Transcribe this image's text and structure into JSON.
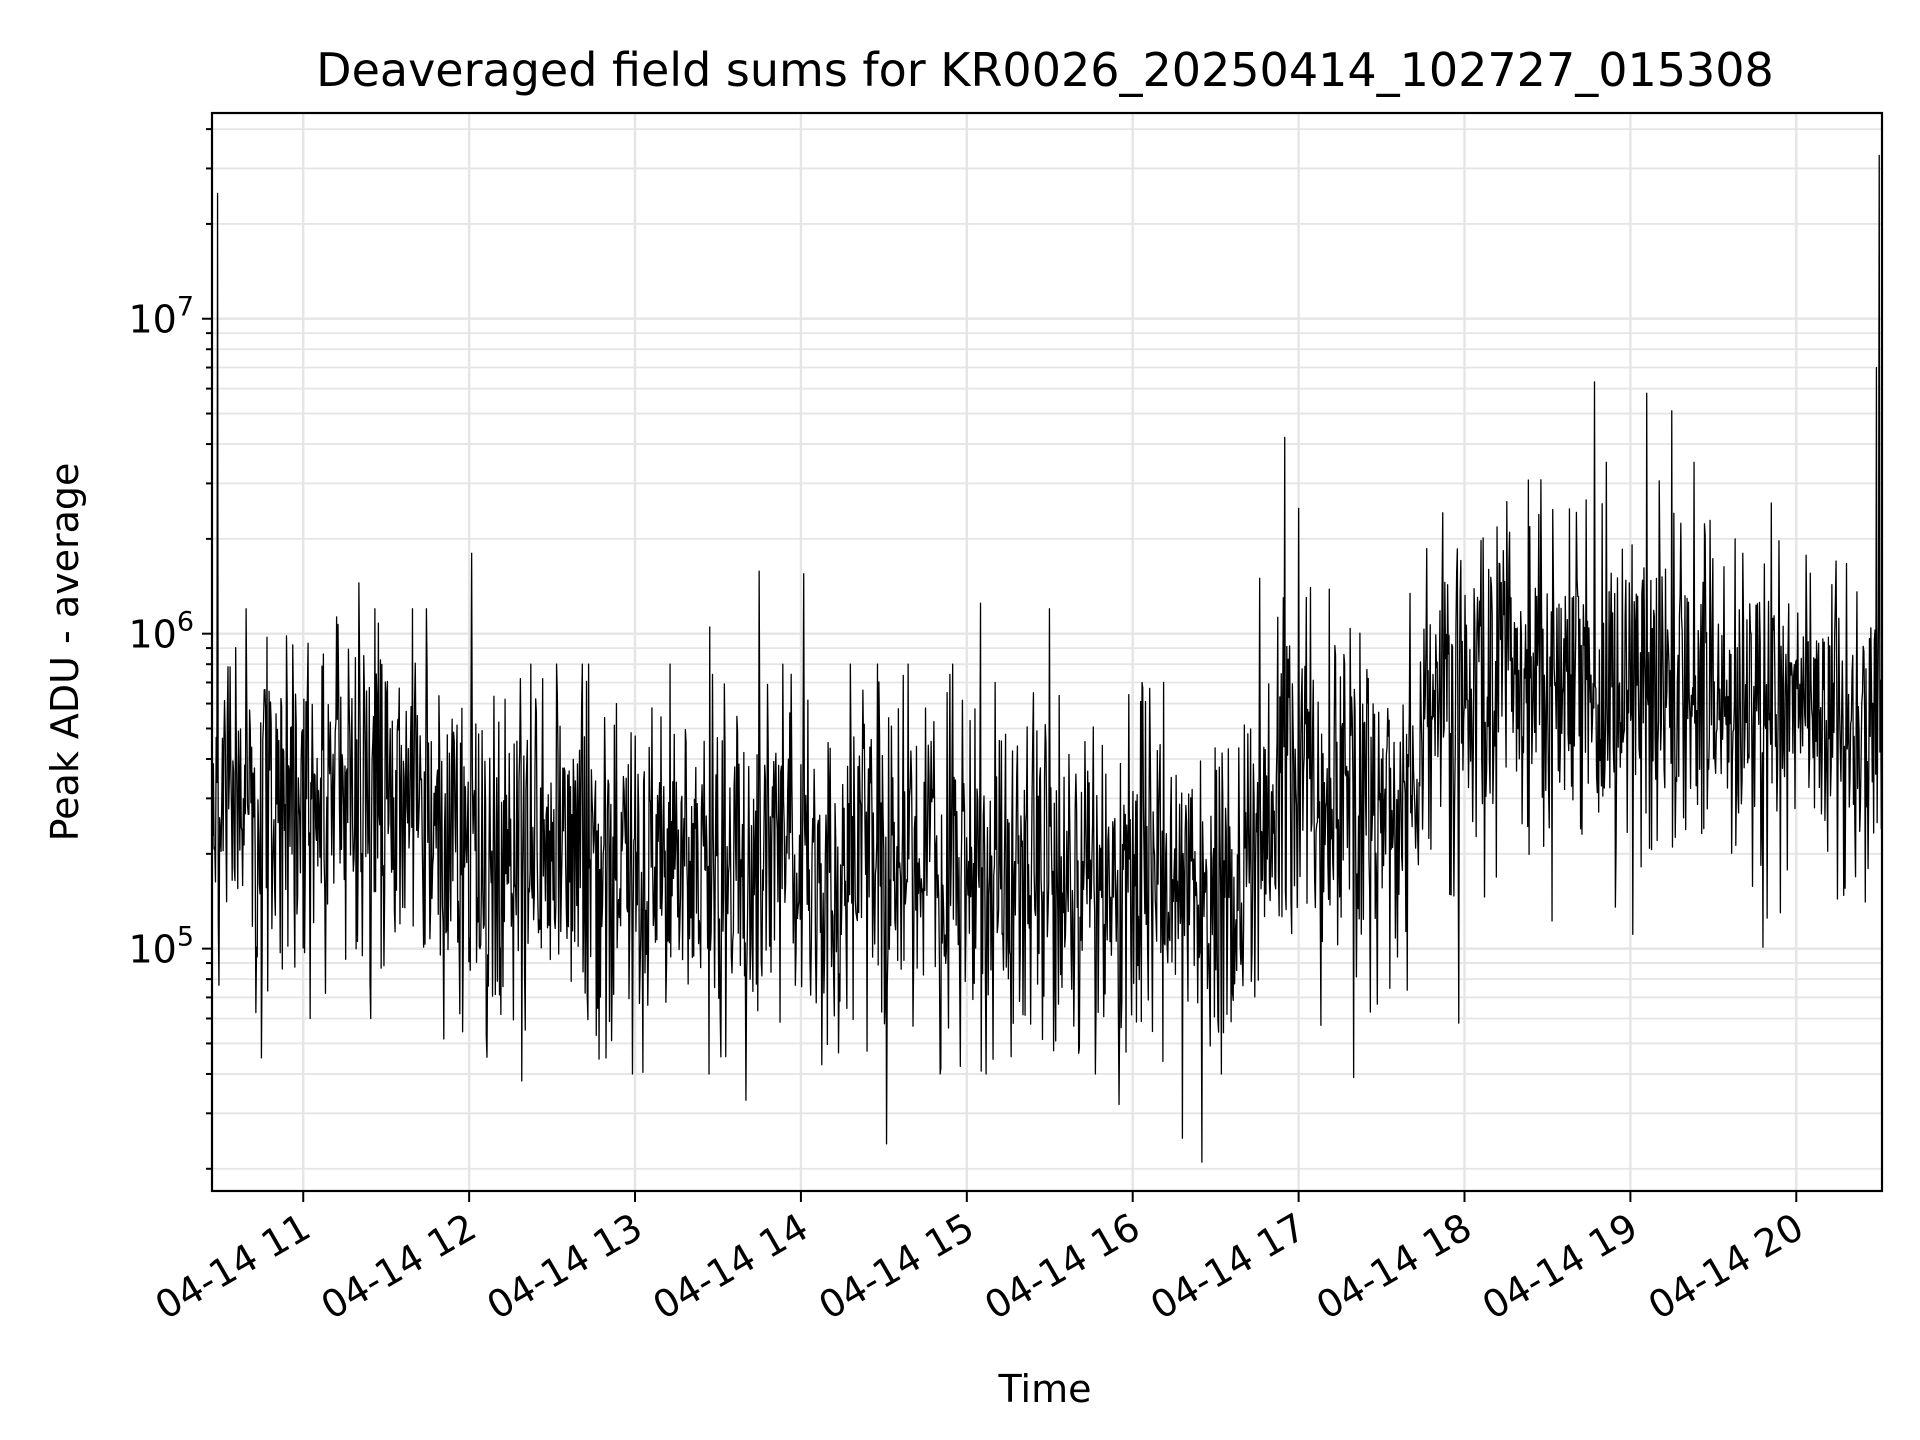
{
  "chart_data": {
    "type": "line",
    "title": "Deaveraged field sums for KR0026_20250414_102727_015308",
    "xlabel": "Time",
    "ylabel": "Peak ADU - average",
    "yscale": "log",
    "ylim": [
      17000,
      45000000
    ],
    "xlim": [
      "2025-04-14 10:27",
      "2025-04-14 20:31"
    ],
    "x_ticks": [
      {
        "value": "2025-04-14 11:00",
        "label": "04-14 11"
      },
      {
        "value": "2025-04-14 12:00",
        "label": "04-14 12"
      },
      {
        "value": "2025-04-14 13:00",
        "label": "04-14 13"
      },
      {
        "value": "2025-04-14 14:00",
        "label": "04-14 14"
      },
      {
        "value": "2025-04-14 15:00",
        "label": "04-14 15"
      },
      {
        "value": "2025-04-14 16:00",
        "label": "04-14 16"
      },
      {
        "value": "2025-04-14 17:00",
        "label": "04-14 17"
      },
      {
        "value": "2025-04-14 18:00",
        "label": "04-14 18"
      },
      {
        "value": "2025-04-14 19:00",
        "label": "04-14 19"
      },
      {
        "value": "2025-04-14 20:00",
        "label": "04-14 20"
      }
    ],
    "y_ticks": [
      {
        "value": 100000,
        "base": "10",
        "exp": "5"
      },
      {
        "value": 1000000,
        "base": "10",
        "exp": "6"
      },
      {
        "value": 10000000,
        "base": "10",
        "exp": "7"
      }
    ],
    "grid": true,
    "series_color": "#000000",
    "spikes": [
      {
        "x": "2025-04-14 10:29",
        "y": 25000000
      },
      {
        "x": "2025-04-14 10:45",
        "y": 45000
      },
      {
        "x": "2025-04-14 11:20",
        "y": 1450000
      },
      {
        "x": "2025-04-14 12:01",
        "y": 1800000
      },
      {
        "x": "2025-04-14 12:19",
        "y": 38000
      },
      {
        "x": "2025-04-14 13:27",
        "y": 1050000
      },
      {
        "x": "2025-04-14 13:40",
        "y": 33000
      },
      {
        "x": "2025-04-14 13:45",
        "y": 1580000
      },
      {
        "x": "2025-04-14 14:01",
        "y": 1550000
      },
      {
        "x": "2025-04-14 14:31",
        "y": 24000
      },
      {
        "x": "2025-04-14 15:05",
        "y": 1250000
      },
      {
        "x": "2025-04-14 15:30",
        "y": 1200000
      },
      {
        "x": "2025-04-14 15:55",
        "y": 32000
      },
      {
        "x": "2025-04-14 16:18",
        "y": 25000
      },
      {
        "x": "2025-04-14 16:25",
        "y": 21000
      },
      {
        "x": "2025-04-14 16:55",
        "y": 4200000
      },
      {
        "x": "2025-04-14 17:00",
        "y": 2500000
      },
      {
        "x": "2025-04-14 17:20",
        "y": 39000
      },
      {
        "x": "2025-04-14 17:58",
        "y": 58000
      },
      {
        "x": "2025-04-14 18:47",
        "y": 6300000
      },
      {
        "x": "2025-04-14 19:06",
        "y": 5800000
      },
      {
        "x": "2025-04-14 19:15",
        "y": 5100000
      },
      {
        "x": "2025-04-14 19:51",
        "y": 2600000
      },
      {
        "x": "2025-04-14 20:30",
        "y": 33000000
      },
      {
        "x": "2025-04-14 20:29",
        "y": 7000000
      }
    ],
    "segments": [
      {
        "start": "2025-04-14 10:27",
        "end": "2025-04-14 11:45",
        "median": 320000,
        "low": 60000,
        "high": 1200000
      },
      {
        "start": "2025-04-14 11:45",
        "end": "2025-04-14 15:00",
        "median": 190000,
        "low": 40000,
        "high": 800000
      },
      {
        "start": "2025-04-14 15:00",
        "end": "2025-04-14 16:45",
        "median": 160000,
        "low": 40000,
        "high": 700000
      },
      {
        "start": "2025-04-14 16:45",
        "end": "2025-04-14 17:45",
        "median": 300000,
        "low": 50000,
        "high": 1500000
      },
      {
        "start": "2025-04-14 17:45",
        "end": "2025-04-14 19:30",
        "median": 650000,
        "low": 100000,
        "high": 3500000
      },
      {
        "start": "2025-04-14 19:30",
        "end": "2025-04-14 20:31",
        "median": 550000,
        "low": 90000,
        "high": 2000000
      }
    ]
  }
}
